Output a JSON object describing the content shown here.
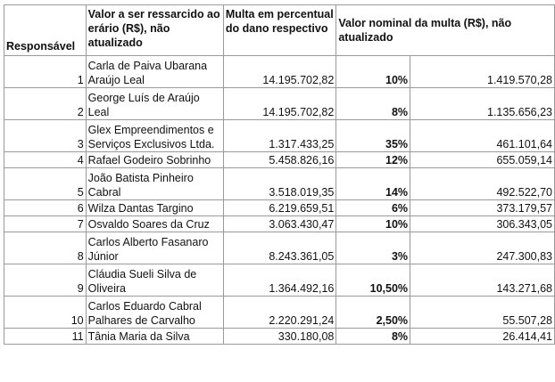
{
  "headers": {
    "responsavel": "Responsável",
    "valor_ressarcido": "Valor a ser ressarcido ao erário (R$), não atualizado",
    "multa_percentual": "Multa em percentual do dano respectivo",
    "valor_nominal": "Valor nominal da multa (R$), não atualizado"
  },
  "rows": [
    {
      "num": "1",
      "name": "Carla de Paiva Ubarana Araújo Leal",
      "valor": "14.195.702,82",
      "pct": "10%",
      "nominal": "1.419.570,28"
    },
    {
      "num": "2",
      "name": "George Luís de Araújo Leal",
      "valor": "14.195.702,82",
      "pct": "8%",
      "nominal": "1.135.656,23"
    },
    {
      "num": "3",
      "name": "Glex Empreendimentos e Serviços Exclusivos Ltda.",
      "valor": "1.317.433,25",
      "pct": "35%",
      "nominal": "461.101,64"
    },
    {
      "num": "4",
      "name": "Rafael Godeiro Sobrinho",
      "valor": "5.458.826,16",
      "pct": "12%",
      "nominal": "655.059,14"
    },
    {
      "num": "5",
      "name": "João Batista Pinheiro Cabral",
      "valor": "3.518.019,35",
      "pct": "14%",
      "nominal": "492.522,70"
    },
    {
      "num": "6",
      "name": "Wilza Dantas Targino",
      "valor": "6.219.659,51",
      "pct": "6%",
      "nominal": "373.179,57"
    },
    {
      "num": "7",
      "name": "Osvaldo Soares da Cruz",
      "valor": "3.063.430,47",
      "pct": "10%",
      "nominal": "306.343,05"
    },
    {
      "num": "8",
      "name": "Carlos Alberto Fasanaro Júnior",
      "valor": "8.243.361,05",
      "pct": "3%",
      "nominal": "247.300,83"
    },
    {
      "num": "9",
      "name": "Cláudia Sueli Silva de Oliveira",
      "valor": "1.364.492,16",
      "pct": "10,50%",
      "nominal": "143.271,68"
    },
    {
      "num": "10",
      "name": "Carlos Eduardo Cabral Palhares de Carvalho",
      "valor": "2.220.291,24",
      "pct": "2,50%",
      "nominal": "55.507,28"
    },
    {
      "num": "11",
      "name": "Tânia Maria da Silva",
      "valor": "330.180,08",
      "pct": "8%",
      "nominal": "26.414,41"
    }
  ]
}
